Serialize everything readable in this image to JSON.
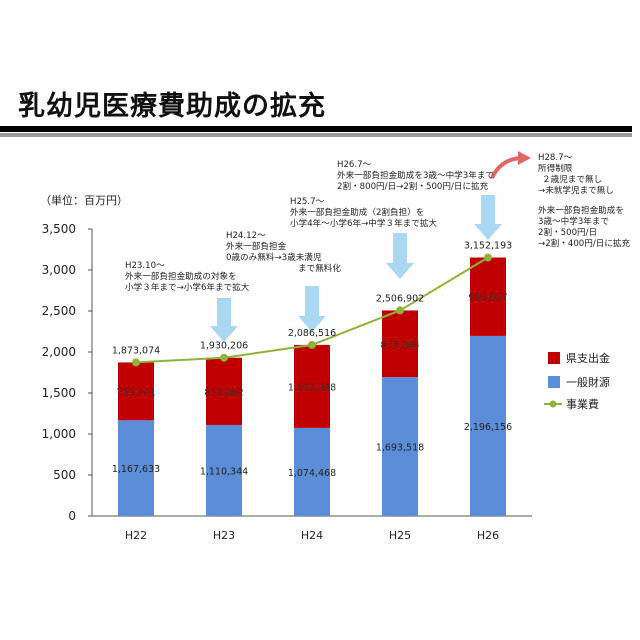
{
  "title": "乳幼児医療費助成の拡充",
  "unit_label": "（単位：百万円）",
  "colors": {
    "prefecture": "#c00000",
    "general": "#5b8ed6",
    "line": "#8db33a",
    "arrow": "#a9d9f2",
    "red_arrow": "#e06666"
  },
  "annotations": {
    "h23": [
      "H23.10～",
      "外来一部負担金助成の対象を",
      "小学３年まで→小学6年まで拡大"
    ],
    "h24": [
      "H24.12～",
      "外来一部負担金",
      "0歳のみ無料→3歳未満児",
      "まで無料化"
    ],
    "h25": [
      "H25.7～",
      "外来一部負担金助成（2割負担）を",
      "小学4年～小学6年→中学３年まで拡大"
    ],
    "h26": [
      "H26.7～",
      "外来一部負担金助成を3歳～中学3年まで",
      "2割・800円/日→2割・500円/日に拡充"
    ],
    "h28": [
      "H28.7～",
      "所得制限",
      "２歳児まで無し",
      "→未就学児まで無し"
    ],
    "h28b": [
      "外来一部負担金助成を",
      "3歳～中学3年まで",
      "2割・500円/日",
      "→2割・400円/日に拡充"
    ]
  },
  "chart_data": {
    "type": "bar",
    "stacked": true,
    "categories": [
      "H22",
      "H23",
      "H24",
      "H25",
      "H26"
    ],
    "series": [
      {
        "name": "一般財源",
        "values": [
          1167633,
          1110344,
          1074468,
          1693518,
          2196156
        ]
      },
      {
        "name": "県支出金",
        "values": [
          705441,
          819862,
          1012048,
          813384,
          956037
        ]
      },
      {
        "name": "事業費",
        "type": "line",
        "values": [
          1873074,
          1930206,
          2086516,
          2506902,
          3152193
        ]
      }
    ],
    "data_labels": {
      "一般財源": [
        "1,167,633",
        "1,110,344",
        "1,074,468",
        "1,693,518",
        "2,196,156"
      ],
      "県支出金": [
        "705,441",
        "819,862",
        "1,012,048",
        "813,384",
        "956,037"
      ],
      "事業費": [
        "1,873,074",
        "1,930,206",
        "2,086,516",
        "2,506,902",
        "3,152,193"
      ]
    },
    "legend": [
      "県支出金",
      "一般財源",
      "事業費"
    ],
    "legend_position": "right",
    "yticks": [
      "0",
      "500",
      "1,000",
      "1,500",
      "2,000",
      "2,500",
      "3,000",
      "3,500"
    ],
    "ylim": [
      0,
      3500000
    ],
    "grid": false
  }
}
